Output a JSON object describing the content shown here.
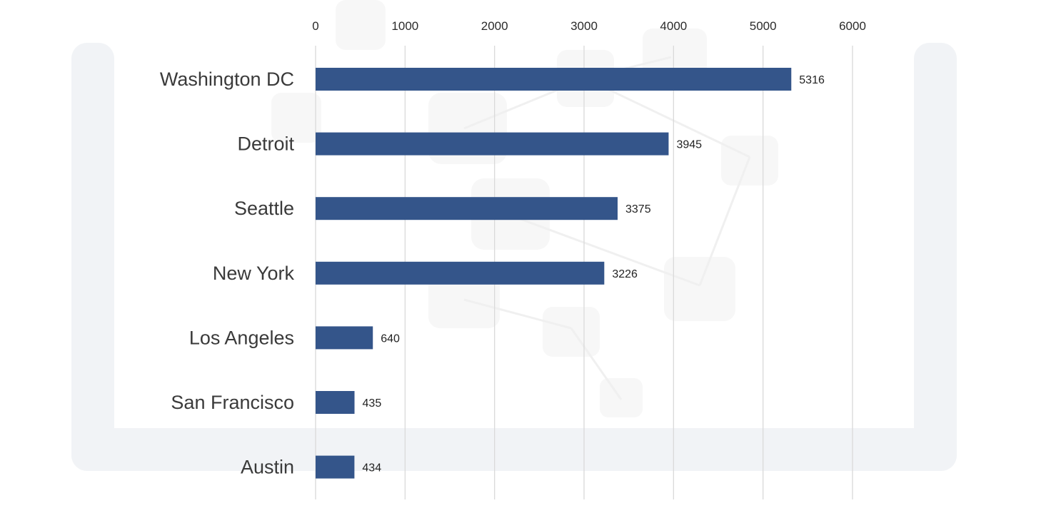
{
  "chart_data": {
    "type": "bar",
    "orientation": "horizontal",
    "title": "",
    "xlabel": "",
    "ylabel": "",
    "categories": [
      "Washington DC",
      "Detroit",
      "Seattle",
      "New York",
      "Los Angeles",
      "San Francisco",
      "Austin"
    ],
    "values": [
      5316,
      3945,
      3375,
      3226,
      640,
      435,
      434
    ],
    "x_ticks": [
      "0",
      "1000",
      "2000",
      "3000",
      "4000",
      "5000",
      "6000"
    ],
    "xlim": [
      0,
      6000
    ],
    "x_axis_position": "top",
    "grid": true,
    "legend": "none",
    "data_labels": true,
    "bar_color": "#34558a"
  },
  "colors": {
    "bar": "#34558a",
    "grid": "#d9d9d9",
    "watermark": "#eef1f4"
  }
}
